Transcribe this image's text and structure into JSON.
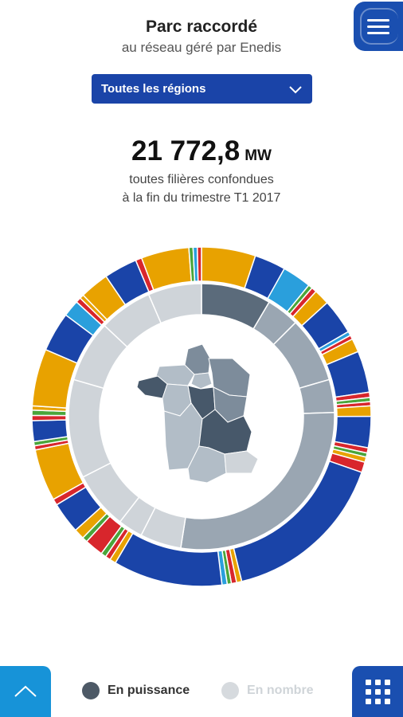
{
  "header": {
    "title": "Parc raccordé",
    "subtitle": "au réseau géré par Enedis",
    "menu_icon": "hamburger-icon"
  },
  "region_select": {
    "value": "Toutes les régions",
    "icon": "chevron-down-icon"
  },
  "summary": {
    "total_value": "21 772,8",
    "unit": "MW",
    "line1": "toutes filières confondues",
    "line2": "à la fin du trimestre T1 2017"
  },
  "chart_data": {
    "type": "pie",
    "variant": "sunburst-with-france-map",
    "colors": {
      "blue": "#1a44a8",
      "orange": "#e8a200",
      "lightblue": "#2a9fdc",
      "red": "#d8262c",
      "green": "#4aa53a",
      "inner_dark": "#5b6b7b",
      "inner_mid": "#9aa6b2",
      "inner_light": "#cfd4d9",
      "map_dark": "#47586a",
      "map_mid": "#7d8c9b",
      "map_light": "#b2bdc7"
    },
    "inner_ring_regions": [
      {
        "share": 8.5,
        "tone": "inner_dark"
      },
      {
        "share": 4.0,
        "tone": "inner_mid"
      },
      {
        "share": 8.0,
        "tone": "inner_mid"
      },
      {
        "share": 4.0,
        "tone": "inner_mid"
      },
      {
        "share": 28.0,
        "tone": "inner_mid"
      },
      {
        "share": 5.0,
        "tone": "inner_light"
      },
      {
        "share": 3.0,
        "tone": "inner_light"
      },
      {
        "share": 7.0,
        "tone": "inner_light"
      },
      {
        "share": 12.0,
        "tone": "inner_light"
      },
      {
        "share": 7.5,
        "tone": "inner_light"
      },
      {
        "share": 6.5,
        "tone": "inner_light"
      },
      {
        "share": 6.5,
        "tone": "inner_light"
      }
    ],
    "outer_ring_segments": [
      {
        "share": 5.2,
        "tone": "orange"
      },
      {
        "share": 3.0,
        "tone": "blue"
      },
      {
        "share": 2.8,
        "tone": "lightblue"
      },
      {
        "share": 0.4,
        "tone": "green"
      },
      {
        "share": 0.5,
        "tone": "red"
      },
      {
        "share": 1.5,
        "tone": "orange"
      },
      {
        "share": 3.4,
        "tone": "blue"
      },
      {
        "share": 0.4,
        "tone": "lightblue"
      },
      {
        "share": 0.4,
        "tone": "red"
      },
      {
        "share": 1.3,
        "tone": "orange"
      },
      {
        "share": 4.0,
        "tone": "blue"
      },
      {
        "share": 0.5,
        "tone": "red"
      },
      {
        "share": 0.4,
        "tone": "green"
      },
      {
        "share": 0.4,
        "tone": "red"
      },
      {
        "share": 1.0,
        "tone": "orange"
      },
      {
        "share": 3.0,
        "tone": "blue"
      },
      {
        "share": 0.5,
        "tone": "red"
      },
      {
        "share": 0.4,
        "tone": "green"
      },
      {
        "share": 0.5,
        "tone": "orange"
      },
      {
        "share": 1.0,
        "tone": "red"
      },
      {
        "share": 16.0,
        "tone": "blue"
      },
      {
        "share": 0.5,
        "tone": "orange"
      },
      {
        "share": 0.5,
        "tone": "red"
      },
      {
        "share": 0.4,
        "tone": "green"
      },
      {
        "share": 0.5,
        "tone": "lightblue"
      },
      {
        "share": 10.5,
        "tone": "blue"
      },
      {
        "share": 0.6,
        "tone": "orange"
      },
      {
        "share": 0.5,
        "tone": "red"
      },
      {
        "share": 0.5,
        "tone": "green"
      },
      {
        "share": 1.8,
        "tone": "red"
      },
      {
        "share": 0.5,
        "tone": "green"
      },
      {
        "share": 1.0,
        "tone": "orange"
      },
      {
        "share": 3.0,
        "tone": "blue"
      },
      {
        "share": 0.6,
        "tone": "red"
      },
      {
        "share": 5.0,
        "tone": "orange"
      },
      {
        "share": 0.4,
        "tone": "red"
      },
      {
        "share": 0.4,
        "tone": "green"
      },
      {
        "share": 2.0,
        "tone": "blue"
      },
      {
        "share": 0.5,
        "tone": "red"
      },
      {
        "share": 0.5,
        "tone": "green"
      },
      {
        "share": 0.4,
        "tone": "orange"
      },
      {
        "share": 5.5,
        "tone": "orange"
      },
      {
        "share": 3.8,
        "tone": "blue"
      },
      {
        "share": 1.6,
        "tone": "lightblue"
      },
      {
        "share": 0.5,
        "tone": "red"
      },
      {
        "share": 0.4,
        "tone": "orange"
      },
      {
        "share": 2.8,
        "tone": "orange"
      },
      {
        "share": 3.2,
        "tone": "blue"
      },
      {
        "share": 0.6,
        "tone": "red"
      },
      {
        "share": 4.6,
        "tone": "orange"
      },
      {
        "share": 0.4,
        "tone": "green"
      },
      {
        "share": 0.4,
        "tone": "lightblue"
      },
      {
        "share": 0.4,
        "tone": "red"
      }
    ]
  },
  "bottom_bar": {
    "up_icon": "chevron-up-icon",
    "grid_icon": "grid-icon",
    "toggle_power": "En puissance",
    "toggle_count": "En nombre",
    "selected": "En puissance"
  }
}
